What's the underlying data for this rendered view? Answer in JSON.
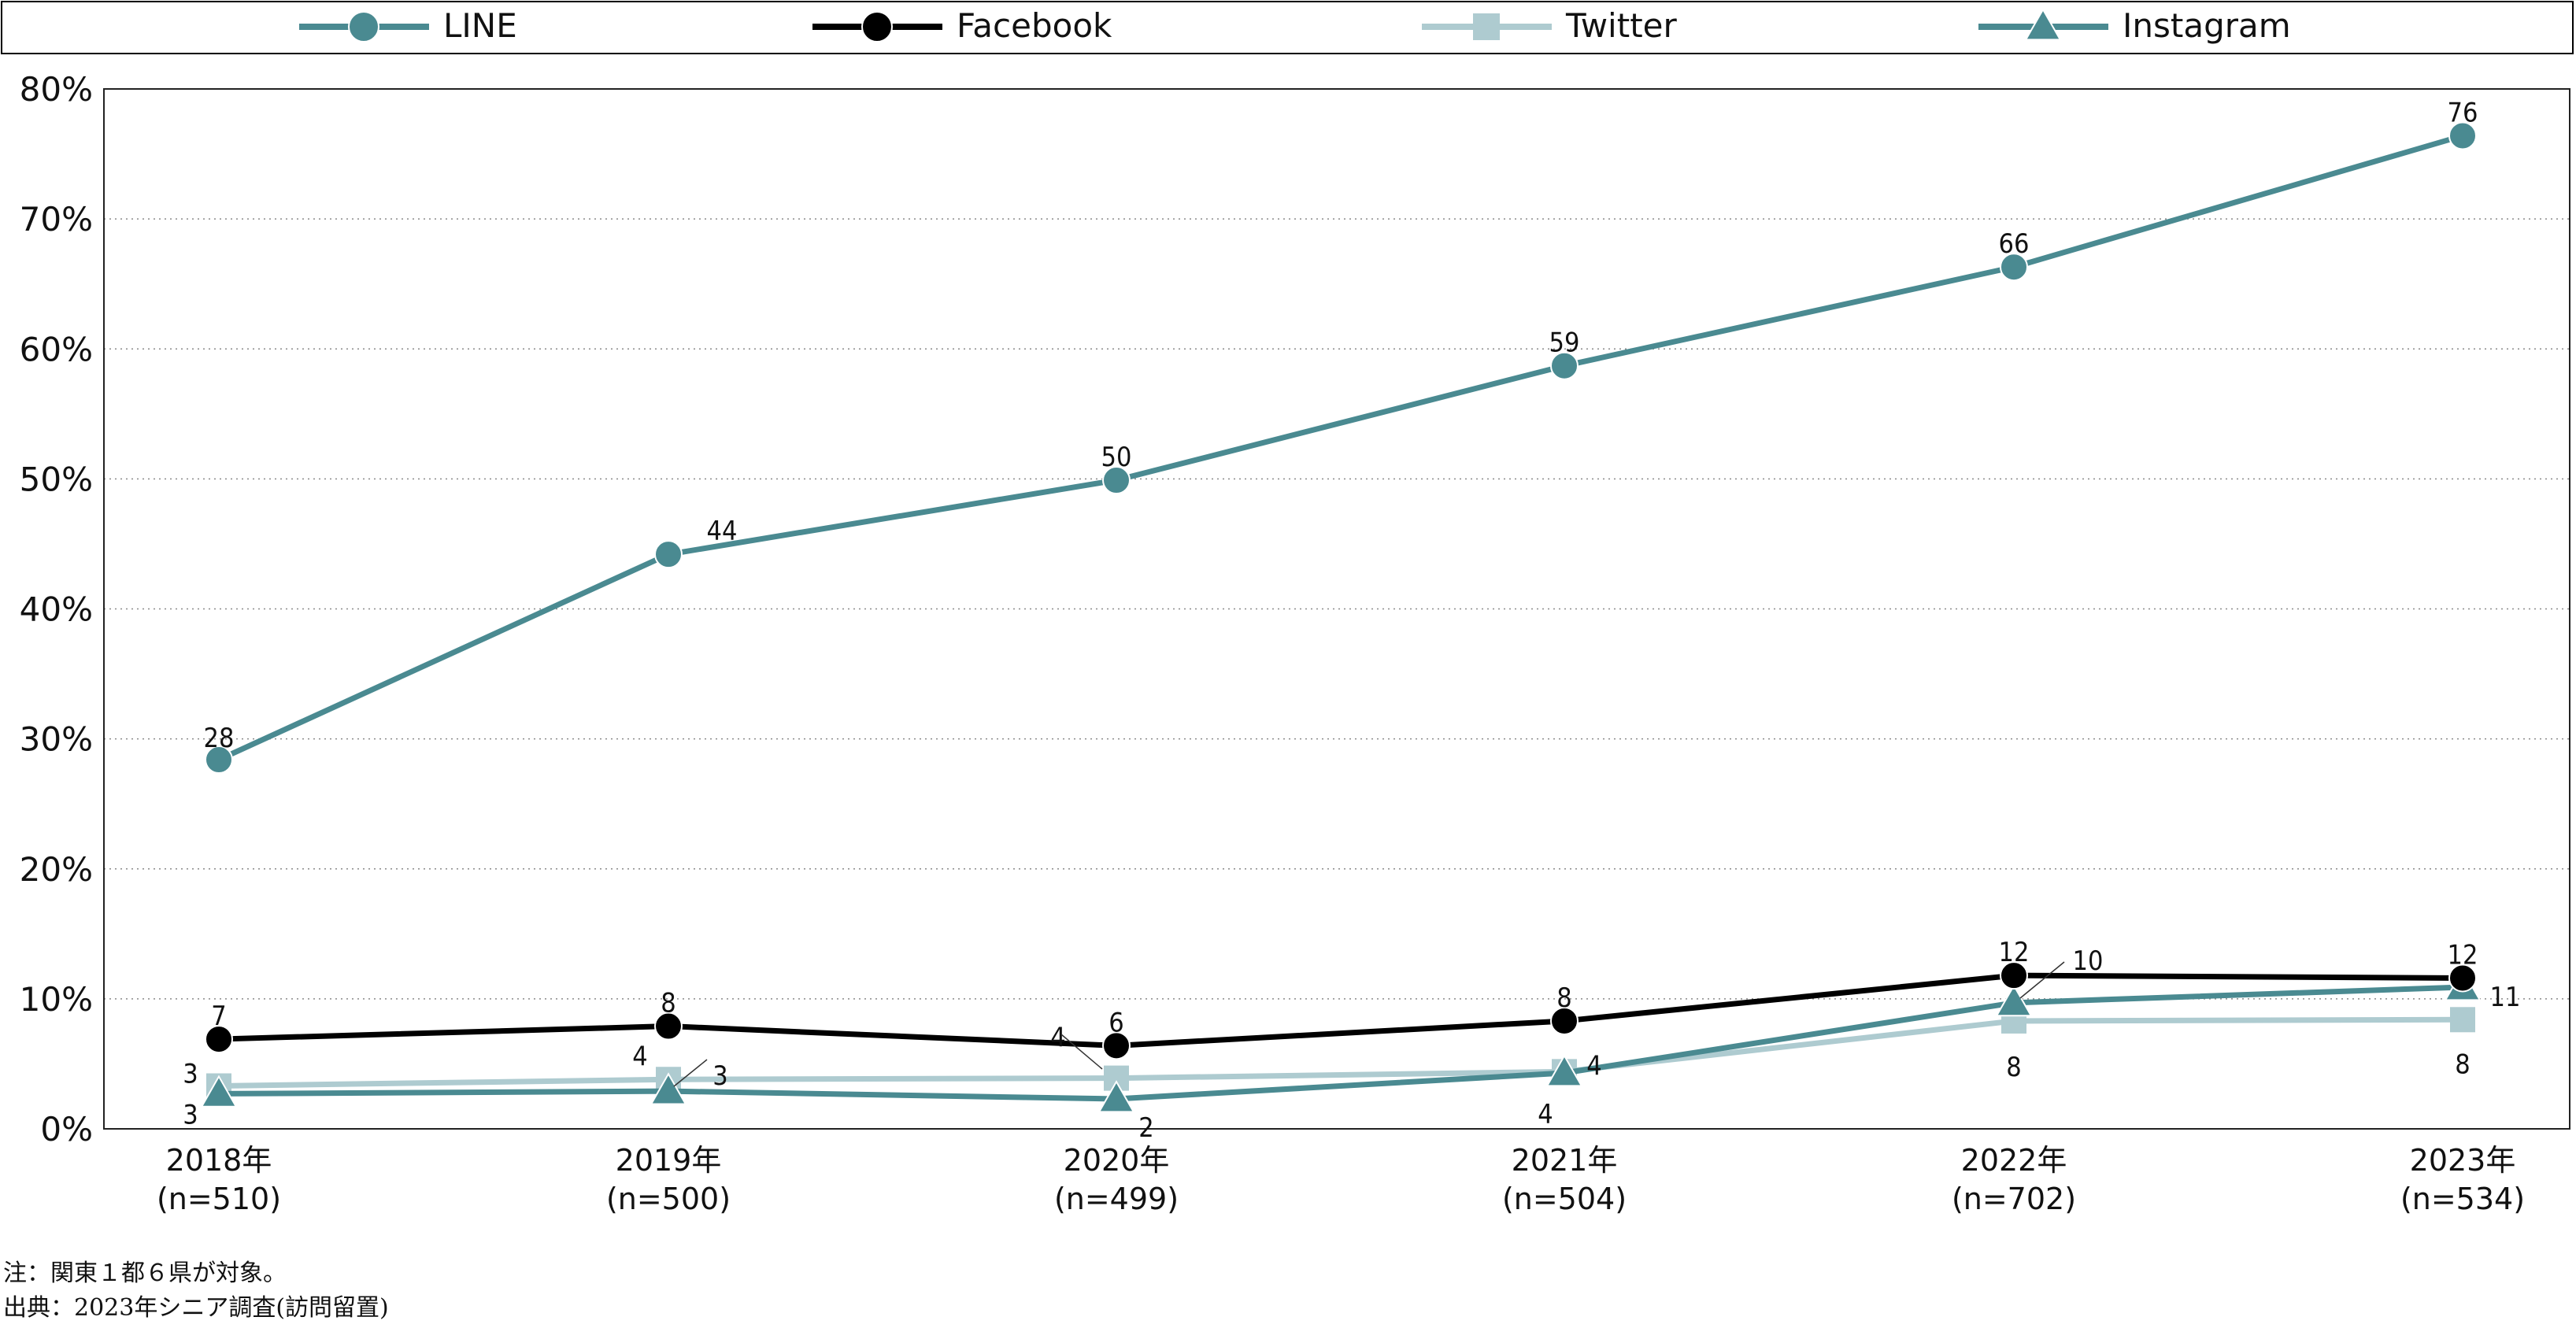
{
  "chart_data": {
    "type": "line",
    "x_labels": [
      "2018年",
      "2019年",
      "2020年",
      "2021年",
      "2022年",
      "2023年"
    ],
    "x_sublabels": [
      "(n=510)",
      "(n=500)",
      "(n=499)",
      "(n=504)",
      "(n=702)",
      "(n=534)"
    ],
    "ylim": [
      0,
      80
    ],
    "y_ticks": [
      "0%",
      "10%",
      "20%",
      "30%",
      "40%",
      "50%",
      "60%",
      "70%",
      "80%"
    ],
    "grid": "horizontal-dotted",
    "legend_position": "top",
    "series": [
      {
        "name": "LINE",
        "marker": "circle",
        "color": "#4a8a91",
        "values": [
          28.4,
          44.2,
          49.9,
          58.7,
          66.3,
          76.4
        ],
        "labels": [
          "28",
          "44",
          "50",
          "59",
          "66",
          "76"
        ]
      },
      {
        "name": "Facebook",
        "marker": "circle",
        "color": "#000000",
        "values": [
          6.9,
          7.9,
          6.4,
          8.3,
          11.8,
          11.6
        ],
        "labels": [
          "7",
          "8",
          "6",
          "8",
          "12",
          "12"
        ]
      },
      {
        "name": "Twitter",
        "marker": "square",
        "color": "#aecbd0",
        "values": [
          3.3,
          3.8,
          3.9,
          4.4,
          8.3,
          8.4
        ],
        "labels": [
          "3",
          "4",
          "4",
          "4",
          "8",
          "8"
        ]
      },
      {
        "name": "Instagram",
        "marker": "triangle",
        "color": "#4a8a91",
        "values": [
          2.7,
          2.9,
          2.3,
          4.3,
          9.7,
          10.9
        ],
        "labels": [
          "3",
          "3",
          "2",
          "4",
          "10",
          "11"
        ]
      }
    ]
  },
  "notes": {
    "note1": "注：関東１都６県が対象。",
    "note2": "出典：2023年シニア調査(訪問留置)"
  }
}
